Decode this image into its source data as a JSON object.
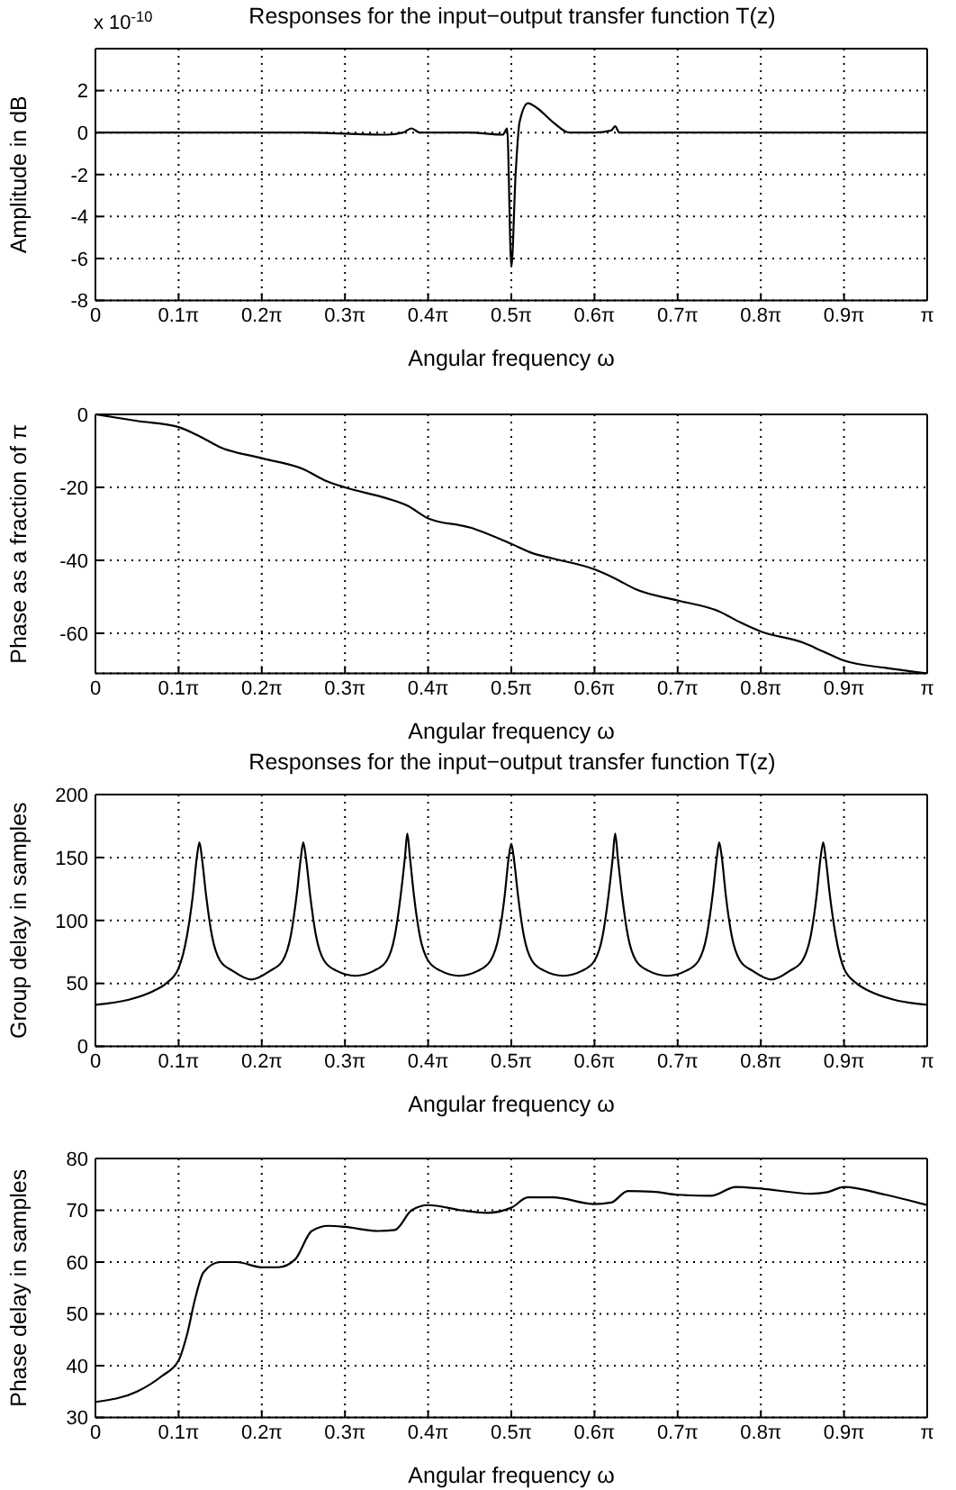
{
  "chart_data": [
    {
      "type": "line",
      "title": "Responses for the input−output transfer function T(z)",
      "xlabel": "Angular frequency ω",
      "ylabel": "Amplitude in dB",
      "annotations": [
        "x 10$^{-10}$"
      ],
      "grid": true,
      "color": "#000000",
      "x": [
        0,
        0.785,
        1.1,
        1.162,
        1.194,
        1.225,
        1.414,
        1.539,
        1.555,
        1.571,
        1.587,
        1.602,
        1.634,
        1.665,
        1.728,
        1.791,
        1.885,
        1.948,
        1.963,
        1.979,
        2.042,
        2.356,
        3.1416
      ],
      "values": [
        0,
        0,
        -0.1,
        0,
        0.2,
        0,
        0,
        -0.1,
        0.2,
        -6.4,
        -2,
        0.5,
        1.4,
        1.2,
        0.5,
        0,
        0,
        0.1,
        0.3,
        0,
        0,
        0,
        0
      ],
      "xlim": [
        0,
        3.1416
      ],
      "xticks": [
        {
          "value": 0,
          "label": "0"
        },
        {
          "value": 0.3142,
          "label": "0.1π"
        },
        {
          "value": 0.6283,
          "label": "0.2π"
        },
        {
          "value": 0.9425,
          "label": "0.3π"
        },
        {
          "value": 1.2566,
          "label": "0.4π"
        },
        {
          "value": 1.5708,
          "label": "0.5π"
        },
        {
          "value": 1.885,
          "label": "0.6π"
        },
        {
          "value": 2.1991,
          "label": "0.7π"
        },
        {
          "value": 2.5133,
          "label": "0.8π"
        },
        {
          "value": 2.8274,
          "label": "0.9π"
        },
        {
          "value": 3.1416,
          "label": "π"
        }
      ],
      "ylim": [
        -8,
        4
      ],
      "yticks": [
        -8,
        -6,
        -4,
        -2,
        0,
        2
      ]
    },
    {
      "type": "line",
      "xlabel": "Angular frequency ω",
      "ylabel": "Phase as a fraction of π",
      "grid": true,
      "color": "#000000",
      "x": [
        0,
        0.157,
        0.314,
        0.393,
        0.471,
        0.628,
        0.785,
        0.864,
        0.942,
        1.1,
        1.178,
        1.257,
        1.414,
        1.571,
        1.649,
        1.728,
        1.885,
        1.963,
        2.042,
        2.199,
        2.356,
        2.435,
        2.513,
        2.67,
        2.749,
        2.827,
        2.985,
        3.1416
      ],
      "values": [
        0,
        -1.8,
        -3.5,
        -6,
        -9,
        -12,
        -15,
        -18,
        -20,
        -23,
        -25,
        -28.5,
        -31,
        -35.5,
        -38,
        -39.5,
        -42.5,
        -45,
        -48,
        -51,
        -54,
        -57,
        -59.5,
        -62.5,
        -65,
        -67.5,
        -69.5,
        -71
      ],
      "xlim": [
        0,
        3.1416
      ],
      "xticks": [
        {
          "value": 0,
          "label": "0"
        },
        {
          "value": 0.3142,
          "label": "0.1π"
        },
        {
          "value": 0.6283,
          "label": "0.2π"
        },
        {
          "value": 0.9425,
          "label": "0.3π"
        },
        {
          "value": 1.2566,
          "label": "0.4π"
        },
        {
          "value": 1.5708,
          "label": "0.5π"
        },
        {
          "value": 1.885,
          "label": "0.6π"
        },
        {
          "value": 2.1991,
          "label": "0.7π"
        },
        {
          "value": 2.5133,
          "label": "0.8π"
        },
        {
          "value": 2.8274,
          "label": "0.9π"
        },
        {
          "value": 3.1416,
          "label": "π"
        }
      ],
      "ylim": [
        -71,
        0
      ],
      "yticks": [
        -60,
        -40,
        -20,
        0
      ]
    },
    {
      "type": "line",
      "title": "Responses for the input−output transfer function T(z)",
      "xlabel": "Angular frequency ω",
      "ylabel": "Group delay in samples",
      "grid": true,
      "color": "#000000",
      "x": [
        0,
        0.126,
        0.22,
        0.267,
        0.314,
        0.346,
        0.368,
        0.383,
        0.393,
        0.402,
        0.418,
        0.44,
        0.471,
        0.518,
        0.589,
        0.66,
        0.707,
        0.738,
        0.76,
        0.776,
        0.785,
        0.795,
        0.811,
        0.833,
        0.864,
        0.911,
        0.982,
        1.052,
        1.1,
        1.131,
        1.153,
        1.169,
        1.178,
        1.188,
        1.203,
        1.225,
        1.257,
        1.304,
        1.374,
        1.445,
        1.492,
        1.524,
        1.546,
        1.561,
        1.571,
        1.58,
        1.596,
        1.618,
        1.649,
        1.696,
        1.767,
        1.838,
        1.885,
        1.916,
        1.938,
        1.954,
        1.963,
        1.973,
        1.989,
        2.011,
        2.042,
        2.089,
        2.16,
        2.231,
        2.278,
        2.309,
        2.331,
        2.347,
        2.356,
        2.366,
        2.381,
        2.403,
        2.435,
        2.482,
        2.553,
        2.623,
        2.67,
        2.702,
        2.724,
        2.739,
        2.749,
        2.758,
        2.774,
        2.796,
        2.827,
        2.875,
        2.922,
        3.016,
        3.1416
      ],
      "values": [
        33,
        37,
        44,
        50,
        62,
        88,
        120,
        150,
        162,
        150,
        120,
        88,
        68,
        60,
        53,
        60,
        68,
        88,
        120,
        150,
        162,
        150,
        120,
        88,
        68,
        60,
        56,
        60,
        68,
        88,
        120,
        150,
        169,
        150,
        120,
        88,
        68,
        60,
        56,
        60,
        68,
        88,
        120,
        150,
        161,
        150,
        120,
        88,
        68,
        60,
        56,
        60,
        68,
        88,
        120,
        150,
        169,
        150,
        120,
        88,
        68,
        60,
        56,
        60,
        68,
        88,
        120,
        150,
        162,
        150,
        120,
        88,
        68,
        60,
        53,
        60,
        68,
        88,
        120,
        150,
        162,
        150,
        120,
        88,
        62,
        50,
        44,
        37,
        33
      ],
      "xlim": [
        0,
        3.1416
      ],
      "xticks": [
        {
          "value": 0,
          "label": "0"
        },
        {
          "value": 0.3142,
          "label": "0.1π"
        },
        {
          "value": 0.6283,
          "label": "0.2π"
        },
        {
          "value": 0.9425,
          "label": "0.3π"
        },
        {
          "value": 1.2566,
          "label": "0.4π"
        },
        {
          "value": 1.5708,
          "label": "0.5π"
        },
        {
          "value": 1.885,
          "label": "0.6π"
        },
        {
          "value": 2.1991,
          "label": "0.7π"
        },
        {
          "value": 2.5133,
          "label": "0.8π"
        },
        {
          "value": 2.8274,
          "label": "0.9π"
        },
        {
          "value": 3.1416,
          "label": "π"
        }
      ],
      "ylim": [
        0,
        200
      ],
      "yticks": [
        0,
        50,
        100,
        150,
        200
      ]
    },
    {
      "type": "line",
      "xlabel": "Angular frequency ω",
      "ylabel": "Phase delay in samples",
      "grid": true,
      "color": "#000000",
      "x": [
        0,
        0.157,
        0.251,
        0.314,
        0.346,
        0.377,
        0.408,
        0.471,
        0.534,
        0.628,
        0.691,
        0.754,
        0.817,
        0.88,
        0.942,
        1.068,
        1.131,
        1.194,
        1.257,
        1.382,
        1.477,
        1.571,
        1.634,
        1.728,
        1.885,
        1.948,
        2.011,
        2.105,
        2.199,
        2.325,
        2.419,
        2.513,
        2.702,
        2.765,
        2.827,
        2.985,
        3.1416
      ],
      "values": [
        33,
        35,
        38,
        41,
        46,
        53,
        58,
        60,
        60,
        59,
        59,
        60.5,
        66,
        67,
        66.8,
        66,
        66.2,
        70,
        71,
        70,
        69.5,
        70.5,
        72.5,
        72.5,
        71.2,
        71.5,
        73.7,
        73.6,
        73,
        72.8,
        74.5,
        74.2,
        73.2,
        73.5,
        74.5,
        73,
        71
      ],
      "xlim": [
        0,
        3.1416
      ],
      "xticks": [
        {
          "value": 0,
          "label": "0"
        },
        {
          "value": 0.3142,
          "label": "0.1π"
        },
        {
          "value": 0.6283,
          "label": "0.2π"
        },
        {
          "value": 0.9425,
          "label": "0.3π"
        },
        {
          "value": 1.2566,
          "label": "0.4π"
        },
        {
          "value": 1.5708,
          "label": "0.5π"
        },
        {
          "value": 1.885,
          "label": "0.6π"
        },
        {
          "value": 2.1991,
          "label": "0.7π"
        },
        {
          "value": 2.5133,
          "label": "0.8π"
        },
        {
          "value": 2.8274,
          "label": "0.9π"
        },
        {
          "value": 3.1416,
          "label": "π"
        }
      ],
      "ylim": [
        30,
        80
      ],
      "yticks": [
        30,
        40,
        50,
        60,
        70,
        80
      ]
    }
  ]
}
